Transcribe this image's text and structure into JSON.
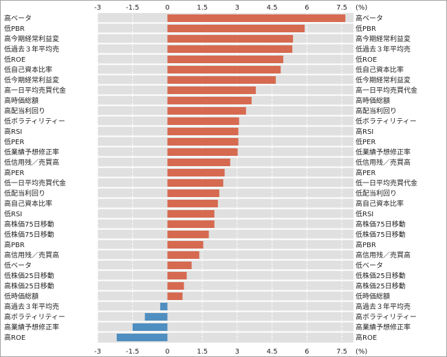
{
  "chart_data": {
    "type": "bar",
    "orientation": "horizontal",
    "unit_label": "(%)",
    "xlim": [
      -3,
      8
    ],
    "ticks": [
      "-3",
      "-1.5",
      "0",
      "1.5",
      "3",
      "4.5",
      "6",
      "7.5"
    ],
    "tick_values": [
      -3,
      -1.5,
      0,
      1.5,
      3,
      4.5,
      6,
      7.5
    ],
    "grid": true,
    "colors": {
      "positive": "#d66a50",
      "negative": "#4f8ec0",
      "background": "#e0e0e0"
    },
    "categories": [
      "高ベータ",
      "低PBR",
      "高今期経常利益変",
      "低過去３年平均売",
      "低ROE",
      "低自己資本比率",
      "低今期経常利益変",
      "高一日平均売買代金",
      "高時価総額",
      "高配当利回り",
      "低ボラティリティー",
      "高RSI",
      "低PER",
      "低業績予想修正率",
      "低信用残／売買高",
      "高PER",
      "低一日平均売買代金",
      "低配当利回り",
      "高自己資本比率",
      "低RSI",
      "高株価75日移動",
      "低株価75日移動",
      "高PBR",
      "高信用残／売買高",
      "低ベータ",
      "低株価25日移動",
      "高株価25日移動",
      "低時価総額",
      "高過去３年平均売",
      "高ボラティリティー",
      "高業績予想修正率",
      "高ROE"
    ],
    "values": [
      7.65,
      5.9,
      5.4,
      5.37,
      4.98,
      4.87,
      4.66,
      3.8,
      3.62,
      3.38,
      3.08,
      3.05,
      3.05,
      3.02,
      2.7,
      2.46,
      2.4,
      2.23,
      2.17,
      2.02,
      2.02,
      1.78,
      1.54,
      1.37,
      1.04,
      0.83,
      0.71,
      0.65,
      -0.31,
      -0.97,
      -1.5,
      -2.18
    ]
  }
}
